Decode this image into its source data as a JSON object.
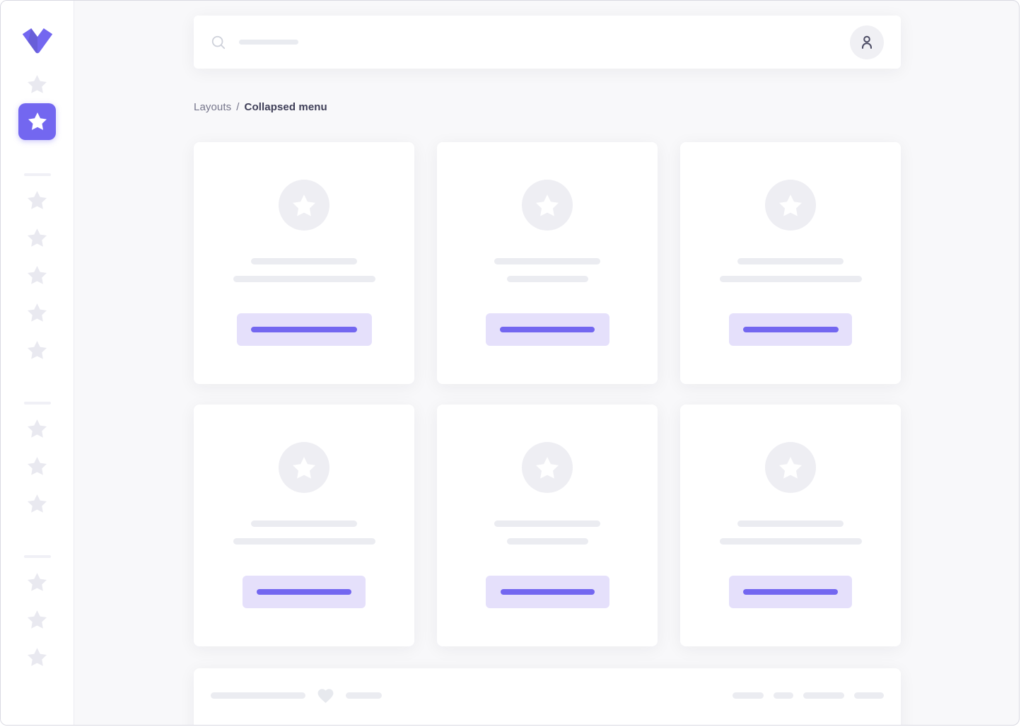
{
  "colors": {
    "primary": "#7367f0",
    "primary_light": "#e5e0fb",
    "placeholder_gray": "#ebecf1",
    "background": "#f8f8fa"
  },
  "sidebar": {
    "logo_icon": "vuexy-logo",
    "nav": [
      {
        "type": "item",
        "icon": "star-icon",
        "active": false
      },
      {
        "type": "item",
        "icon": "star-icon",
        "active": true
      },
      {
        "type": "divider"
      },
      {
        "type": "item",
        "icon": "star-icon",
        "active": false
      },
      {
        "type": "item",
        "icon": "star-icon",
        "active": false
      },
      {
        "type": "item",
        "icon": "star-icon",
        "active": false
      },
      {
        "type": "item",
        "icon": "star-icon",
        "active": false
      },
      {
        "type": "item",
        "icon": "star-icon",
        "active": false
      },
      {
        "type": "divider"
      },
      {
        "type": "item",
        "icon": "star-icon",
        "active": false
      },
      {
        "type": "item",
        "icon": "star-icon",
        "active": false
      },
      {
        "type": "item",
        "icon": "star-icon",
        "active": false
      },
      {
        "type": "divider"
      },
      {
        "type": "item",
        "icon": "star-icon",
        "active": false
      },
      {
        "type": "item",
        "icon": "star-icon",
        "active": false
      },
      {
        "type": "item",
        "icon": "star-icon",
        "active": false
      }
    ]
  },
  "header": {
    "search_icon": "search-icon",
    "search_placeholder_width": 84,
    "avatar_icon": "person-icon"
  },
  "breadcrumb": {
    "parent": "Layouts",
    "separator": "/",
    "current": "Collapsed menu"
  },
  "cards": [
    {
      "icon": "star-icon",
      "title_width": 150,
      "subtitle_width": 201,
      "button_width": 191,
      "button_bar_width": 150
    },
    {
      "icon": "star-icon",
      "title_width": 150,
      "subtitle_width": 115,
      "button_width": 175,
      "button_bar_width": 134
    },
    {
      "icon": "star-icon",
      "title_width": 150,
      "subtitle_width": 201,
      "button_width": 174,
      "button_bar_width": 135
    },
    {
      "icon": "star-icon",
      "title_width": 150,
      "subtitle_width": 201,
      "button_width": 174,
      "button_bar_width": 134
    },
    {
      "icon": "star-icon",
      "title_width": 150,
      "subtitle_width": 115,
      "button_width": 175,
      "button_bar_width": 133
    },
    {
      "icon": "star-icon",
      "title_width": 150,
      "subtitle_width": 201,
      "button_width": 174,
      "button_bar_width": 134
    }
  ],
  "footer": {
    "left_line_widths": [
      134,
      51
    ],
    "heart_icon": "heart-icon",
    "right_pill_widths": [
      44,
      28,
      58,
      42
    ]
  }
}
